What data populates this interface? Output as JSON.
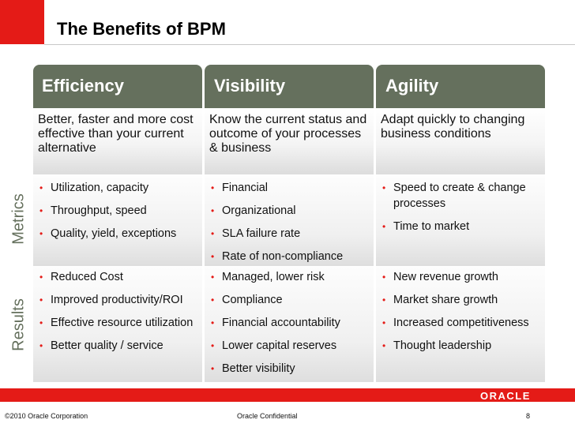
{
  "slide": {
    "title": "The Benefits of BPM"
  },
  "row_labels": {
    "metrics": "Metrics",
    "results": "Results"
  },
  "columns": [
    {
      "header": "Efficiency",
      "description": "Better, faster and more cost effective than your current alternative",
      "metrics": [
        "Utilization, capacity",
        "Throughput, speed",
        "Quality, yield, exceptions"
      ],
      "results": [
        "Reduced Cost",
        "Improved productivity/ROI",
        "Effective resource utilization",
        "Better quality / service"
      ]
    },
    {
      "header": "Visibility",
      "description": "Know the current status and outcome of your processes & business",
      "metrics": [
        "Financial",
        "Organizational",
        "SLA failure rate",
        "Rate of non-compliance"
      ],
      "results": [
        "Managed, lower risk",
        "Compliance",
        "Financial accountability",
        "Lower capital reserves",
        "Better visibility"
      ]
    },
    {
      "header": "Agility",
      "description": "Adapt quickly to changing business conditions",
      "metrics": [
        "Speed to create & change processes",
        "Time to market"
      ],
      "results": [
        "New revenue growth",
        "Market share growth",
        "Increased competitiveness",
        "Thought leadership"
      ]
    }
  ],
  "footer": {
    "logo": "ORACLE",
    "copyright": "©2010 Oracle Corporation",
    "confidential": "Oracle Confidential",
    "page_number": "8"
  },
  "colors": {
    "accent_red": "#e41b17",
    "header_olive": "#65705d"
  },
  "bullet_glyph": "•"
}
